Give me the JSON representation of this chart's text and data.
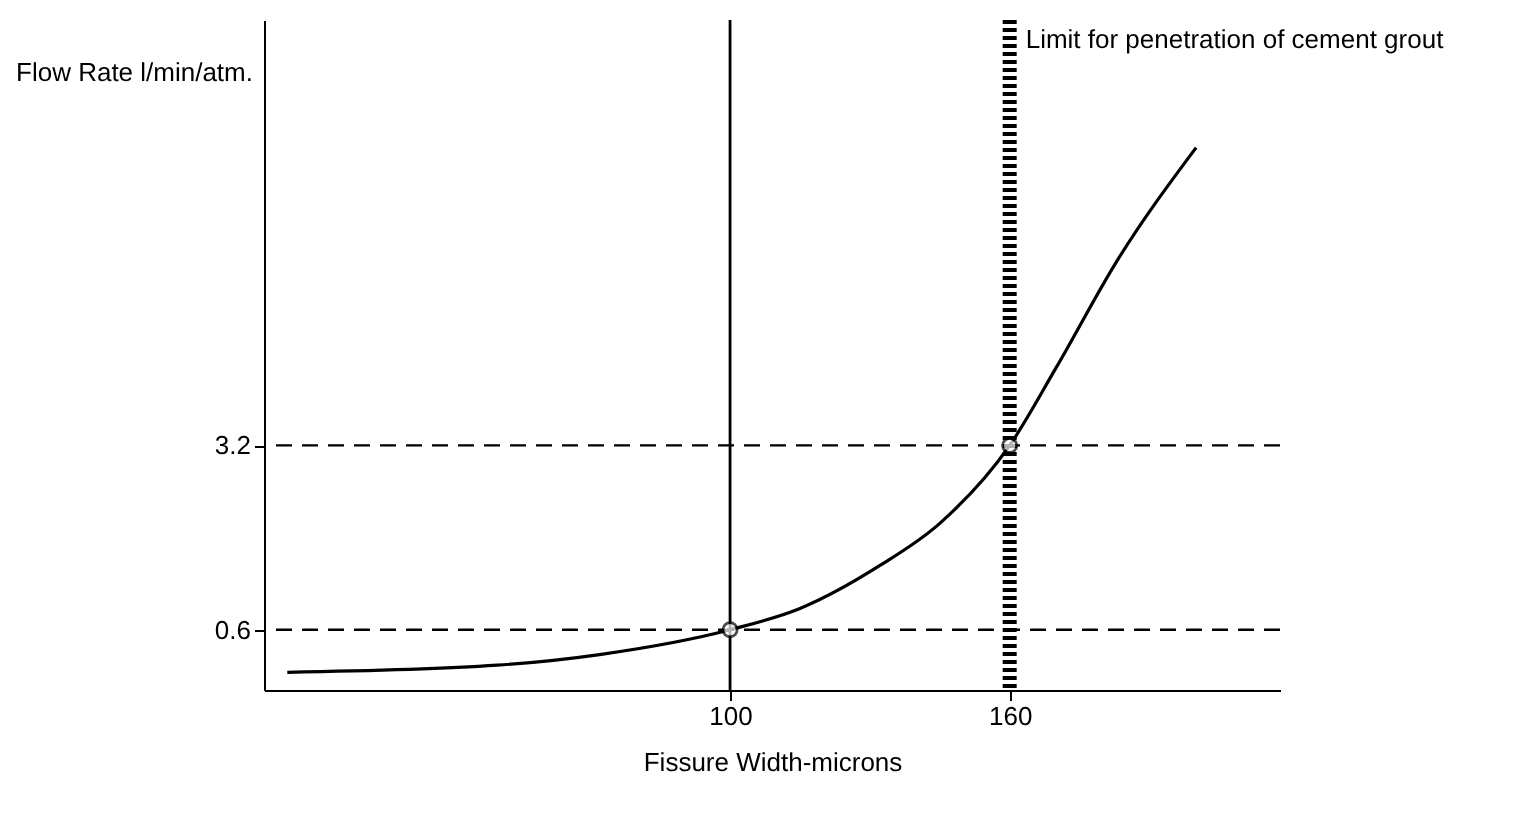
{
  "chart_data": {
    "type": "line",
    "xlabel": "Fissure Width-microns",
    "ylabel": "Flow Rate l/min/atm.",
    "xlim": [
      0,
      218
    ],
    "ylim": [
      -0.25,
      9.2
    ],
    "xticks": [
      100,
      160
    ],
    "yticks": [
      0.6,
      3.2
    ],
    "grid": false,
    "series": [
      {
        "color": "#000000",
        "x": [
          5,
          50,
          72,
          100,
          115,
          132,
          145,
          160,
          170,
          183,
          200
        ],
        "values": [
          0,
          0.1,
          0.25,
          0.6,
          0.9,
          1.5,
          2.1,
          3.2,
          4.3,
          5.8,
          7.4
        ],
        "marker": "none"
      },
      {
        "type": "scatter",
        "color": "#000000",
        "x": [
          100,
          160
        ],
        "values": [
          0.6,
          3.2
        ],
        "marker": "circle"
      }
    ],
    "ref_lines": [
      {
        "axis": "y",
        "value": 0.6,
        "line_style": "dashed"
      },
      {
        "axis": "y",
        "value": 3.2,
        "line_style": "dashed"
      },
      {
        "axis": "x",
        "value": 100,
        "line_style": "solid"
      },
      {
        "axis": "x",
        "value": 160,
        "line_style": "dotted",
        "label": "Limit for penetration of cement grout"
      }
    ]
  }
}
